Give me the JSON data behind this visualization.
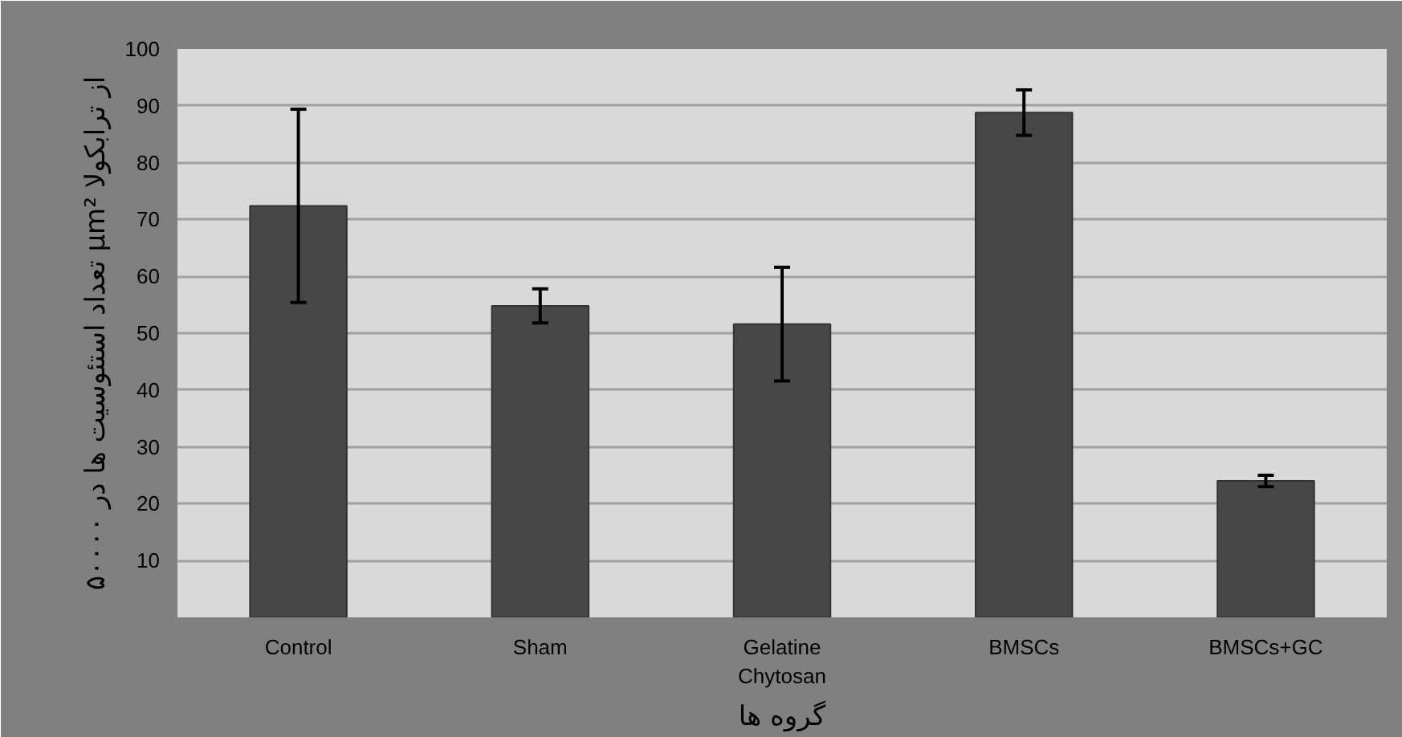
{
  "chart_data": {
    "type": "bar",
    "xlabel": "گروه ها",
    "ylabel": "تعداد استئوسیت ها در ۵۰۰۰۰ μm² از ترابکولا",
    "categories": [
      "Control",
      "Sham",
      "Gelatine\nChytosan",
      "BMSCs",
      "BMSCs+GC"
    ],
    "values": [
      72.4,
      54.8,
      51.6,
      88.8,
      24.0
    ],
    "errors": [
      17,
      3,
      10,
      4,
      1
    ],
    "color": "#474747",
    "ylim": [
      0,
      100
    ],
    "yticks": [
      10,
      20,
      30,
      40,
      50,
      60,
      70,
      80,
      90,
      100
    ],
    "grid": "y"
  }
}
